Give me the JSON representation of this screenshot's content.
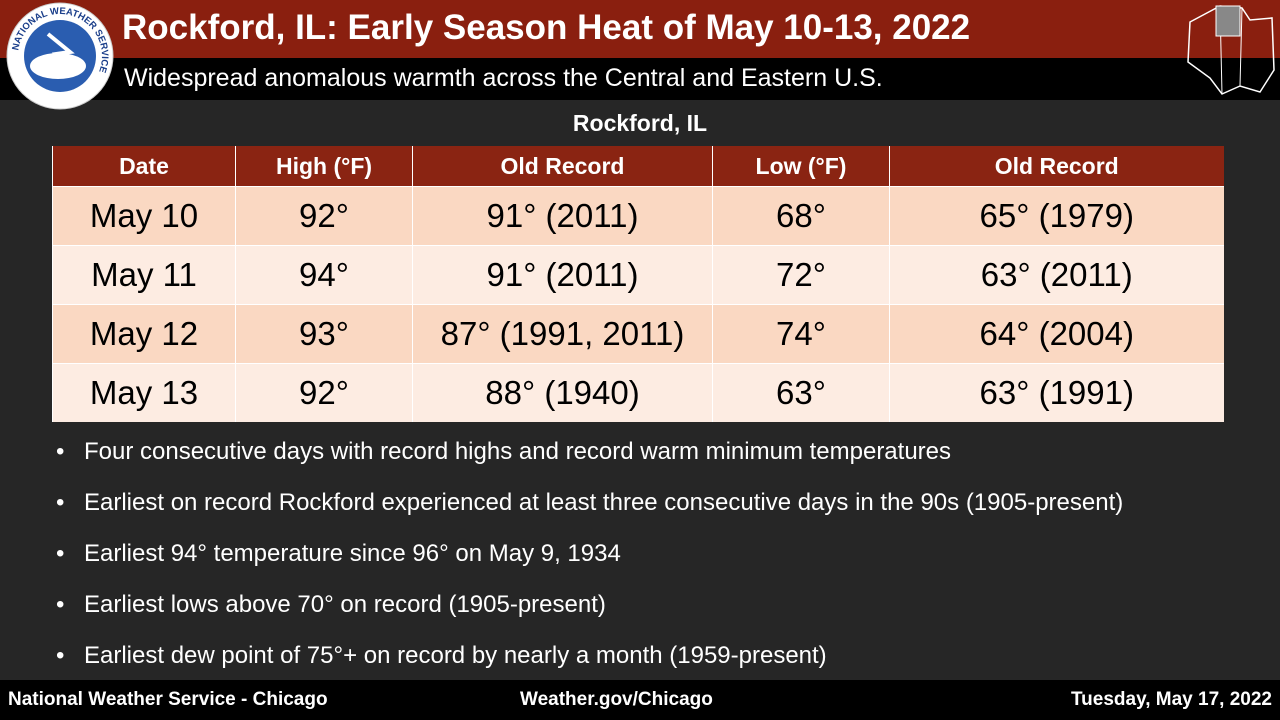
{
  "header": {
    "title": "Rockford, IL:  Early Season Heat of May 10-13, 2022",
    "subtitle": "Widespread anomalous warmth across the Central and Eastern U.S.",
    "logo_text": "NATIONAL WEATHER SERVICE"
  },
  "table": {
    "caption": "Rockford, IL",
    "columns": [
      "Date",
      "High  (°F)",
      "Old Record",
      "Low (°F)",
      "Old Record"
    ],
    "rows": [
      [
        "May 10",
        "92°",
        "91° (2011)",
        "68°",
        "65° (1979)"
      ],
      [
        "May 11",
        "94°",
        "91° (2011)",
        "72°",
        "63° (2011)"
      ],
      [
        "May 12",
        "93°",
        "87° (1991, 2011)",
        "74°",
        "64° (2004)"
      ],
      [
        "May 13",
        "92°",
        "88° (1940)",
        "63°",
        "63° (1991)"
      ]
    ]
  },
  "bullets": [
    "Four consecutive days with record highs and record warm minimum temperatures",
    "Earliest on record Rockford experienced at least three consecutive days in the 90s (1905-present)",
    "Earliest 94° temperature since 96° on May 9, 1934",
    "Earliest lows above 70° on record (1905-present)",
    "Earliest dew point of 75°+ on record by nearly a month (1959-present)"
  ],
  "footer": {
    "left": "National  Weather Service - Chicago",
    "center": "Weather.gov/Chicago",
    "right": "Tuesday, May 17, 2022"
  }
}
